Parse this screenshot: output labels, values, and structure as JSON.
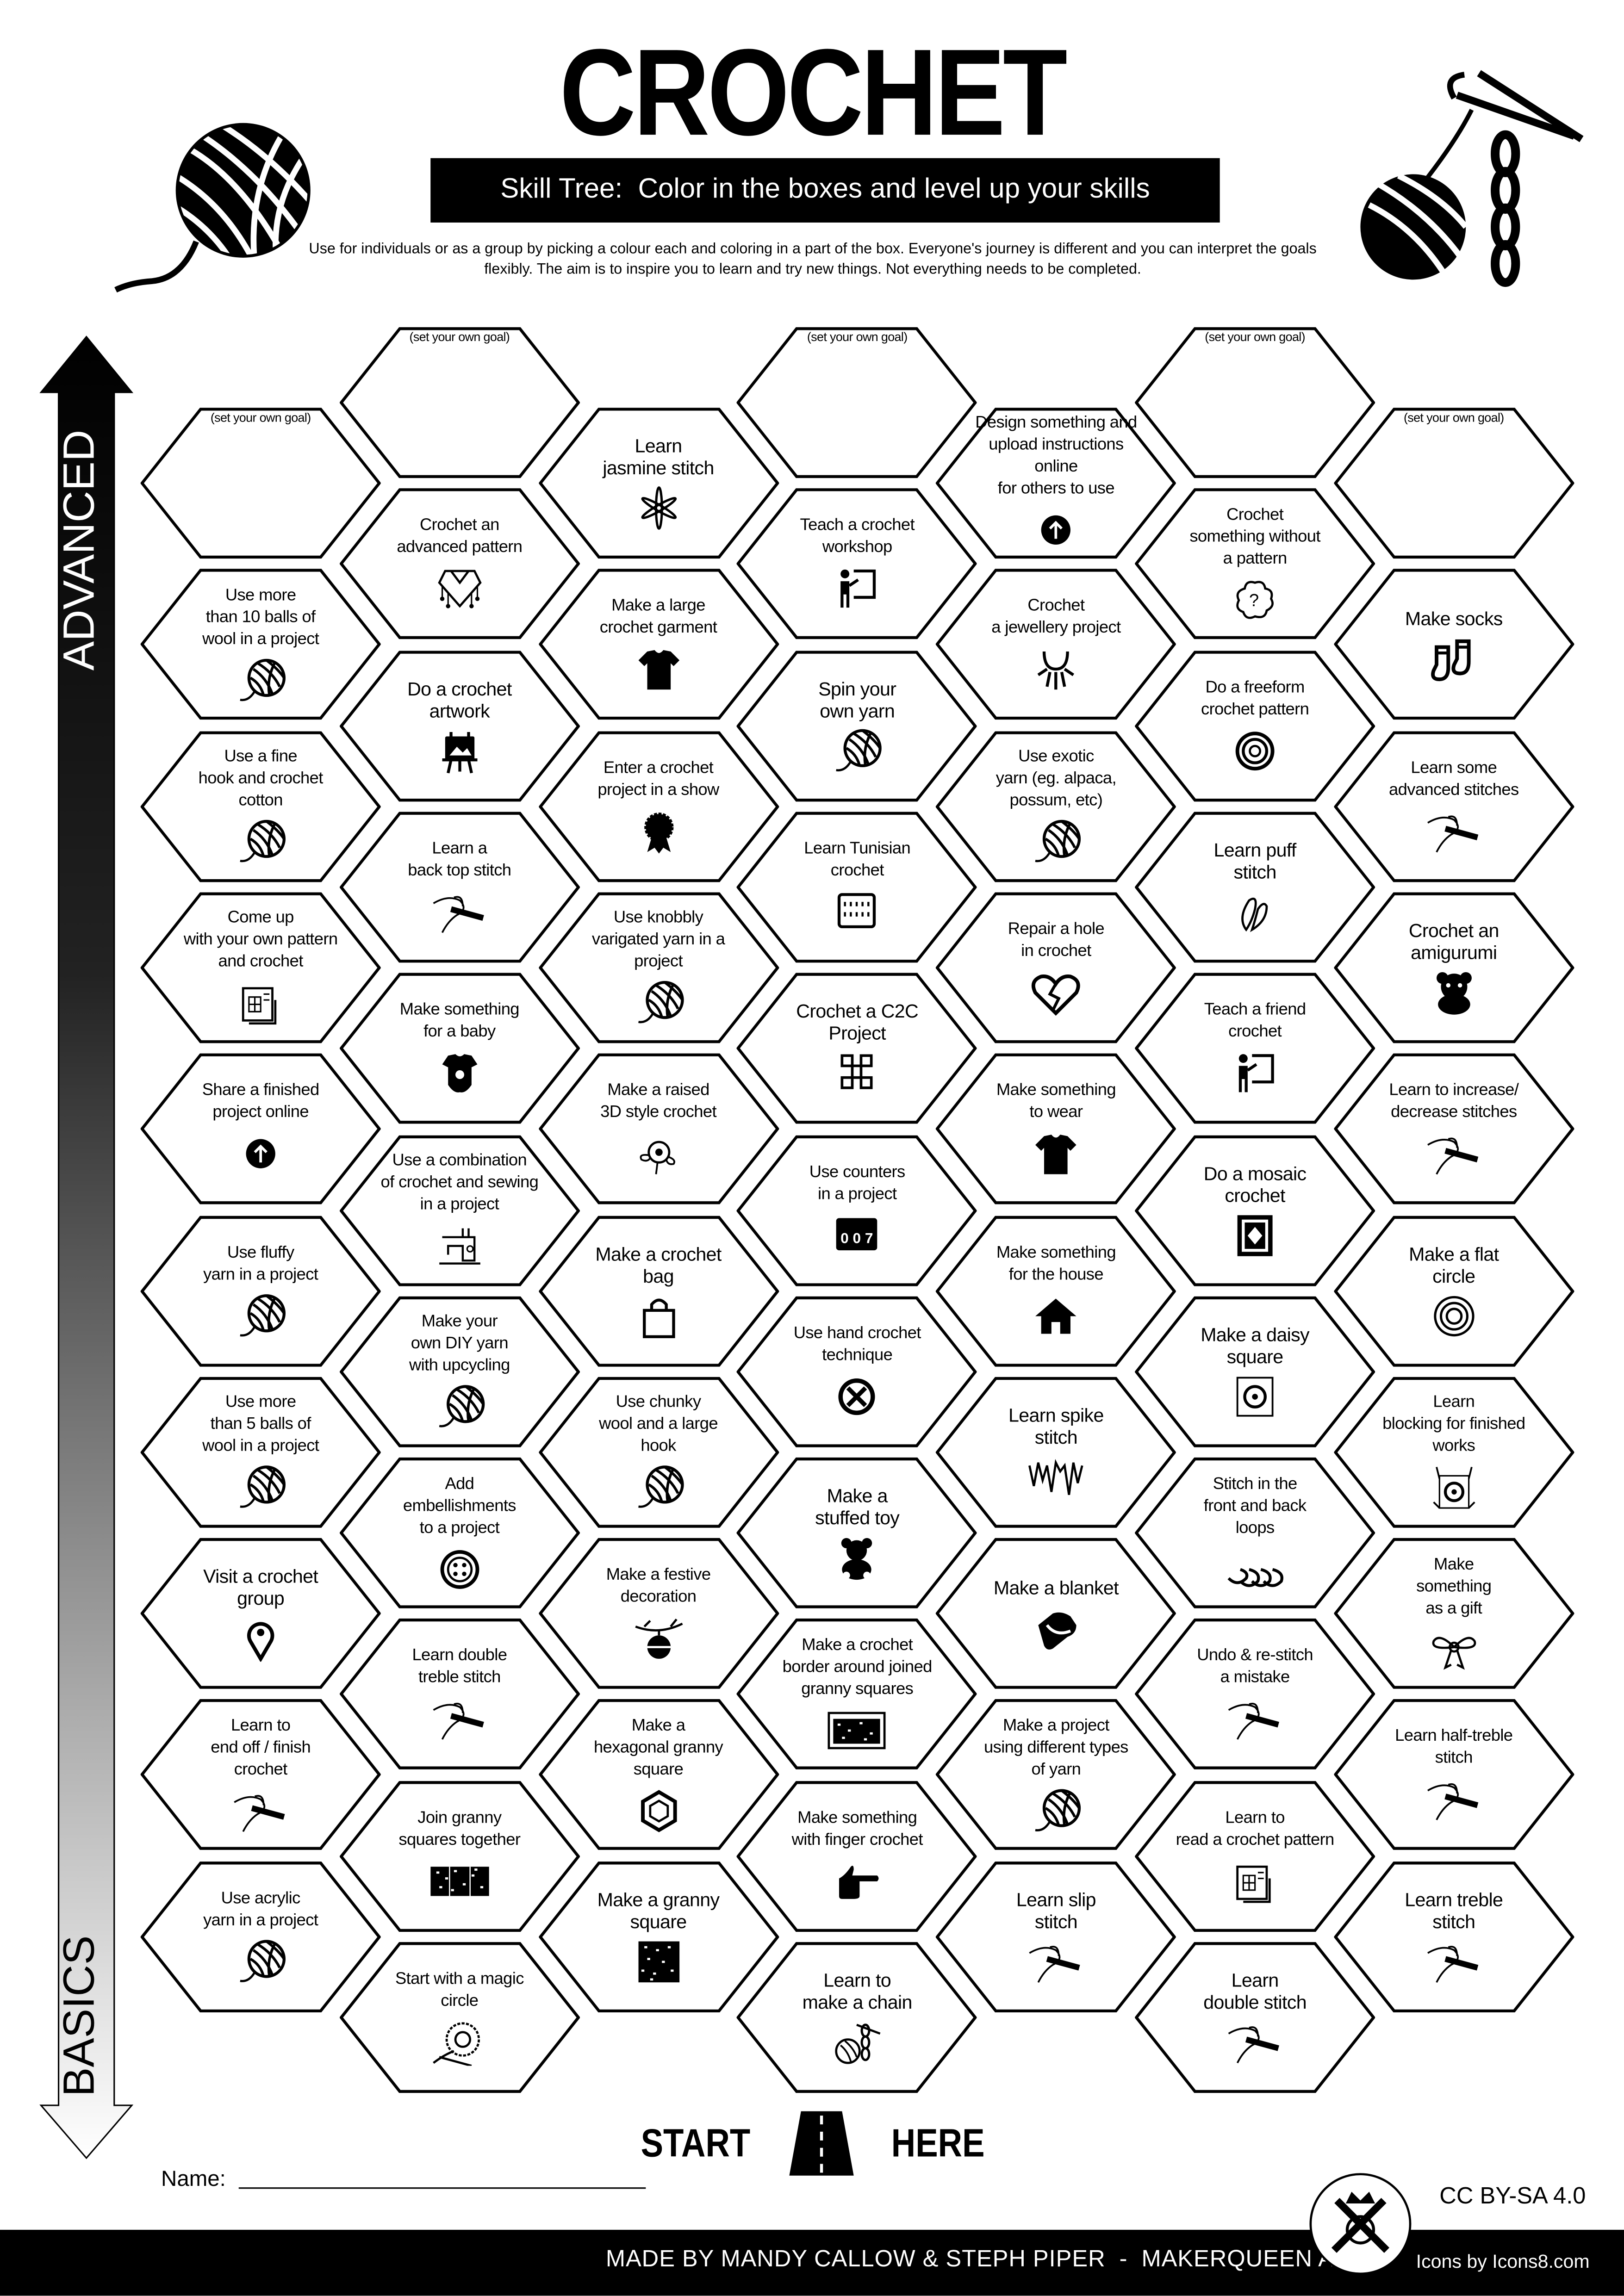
{
  "header": {
    "title": "CROCHET",
    "subtitle": "Skill Tree:  Color in the boxes and level up your skills",
    "intro": "Use for individuals or as a group by picking a colour each and coloring in a part of the box.  Everyone's journey is different and you can interpret the goals flexibly.  The aim is to inspire you to learn and try new things. Not everything needs to be completed."
  },
  "axis": {
    "top_label": "ADVANCED",
    "bottom_label": "BASICS"
  },
  "colors": {
    "ink": "#000000",
    "paper": "#ffffff"
  },
  "columns": [
    [
      {
        "text": "(set your own goal)",
        "goal": true
      },
      {
        "text": "Use more\nthan 10 balls of\nwool in a project",
        "icon": "yarn-ball-icon"
      },
      {
        "text": "Use a fine\nhook and crochet\ncotton",
        "icon": "yarn-ball-icon"
      },
      {
        "text": "Come up\nwith your own pattern\nand crochet",
        "icon": "pattern-blueprint-icon"
      },
      {
        "text": "Share a finished\nproject online",
        "icon": "upload-icon"
      },
      {
        "text": "Use fluffy\nyarn in a project",
        "icon": "yarn-ball-icon"
      },
      {
        "text": "Use more\nthan 5 balls of\nwool in a project",
        "icon": "yarn-ball-icon"
      },
      {
        "text": "Visit a crochet\ngroup",
        "icon": "location-pin-icon"
      },
      {
        "text": "Learn to\nend off / finish\ncrochet",
        "icon": "crochet-hook-icon"
      },
      {
        "text": "Use acrylic\nyarn in a project",
        "icon": "yarn-ball-icon"
      }
    ],
    [
      {
        "text": "(set your own goal)",
        "goal": true
      },
      {
        "text": "Crochet an\nadvanced pattern",
        "icon": "poncho-icon"
      },
      {
        "text": "Do a crochet\nartwork",
        "icon": "easel-icon"
      },
      {
        "text": "Learn a\nback top stitch",
        "icon": "crochet-hook-icon"
      },
      {
        "text": "Make something\nfor a baby",
        "icon": "baby-onesie-icon"
      },
      {
        "text": "Use a combination\nof crochet and sewing\nin a project",
        "icon": "sewing-machine-icon"
      },
      {
        "text": "Make your\nown DIY yarn\nwith upcycling",
        "icon": "yarn-ball-icon"
      },
      {
        "text": "Add\nembellishments\nto a project",
        "icon": "button-icon"
      },
      {
        "text": "Learn double\ntreble stitch",
        "icon": "crochet-hook-icon"
      },
      {
        "text": "Join granny\nsquares together",
        "icon": "joined-granny-squares-icon"
      },
      {
        "text": "Start with a magic\ncircle",
        "icon": "magic-circle-icon"
      }
    ],
    [
      {
        "text": "Learn\njasmine stitch",
        "icon": "jasmine-flower-icon"
      },
      {
        "text": "Make a large\ncrochet garment",
        "icon": "t-shirt-icon"
      },
      {
        "text": "Enter a crochet\nproject in a show",
        "icon": "award-rosette-icon"
      },
      {
        "text": "Use knobbly\nvarigated yarn in a project",
        "icon": "yarn-ball-icon"
      },
      {
        "text": "Make a raised\n3D style crochet",
        "icon": "flower-icon"
      },
      {
        "text": "Make a crochet\nbag",
        "icon": "shopping-bag-icon"
      },
      {
        "text": "Use chunky\nwool and a large\nhook",
        "icon": "yarn-ball-icon"
      },
      {
        "text": "Make a festive\ndecoration",
        "icon": "christmas-bauble-icon"
      },
      {
        "text": "Make a\nhexagonal granny\nsquare",
        "icon": "hexagon-icon"
      },
      {
        "text": "Make a granny\nsquare",
        "icon": "granny-square-icon"
      }
    ],
    [
      {
        "text": "(set your own goal)",
        "goal": true
      },
      {
        "text": "Teach a crochet\nworkshop",
        "icon": "teacher-board-icon"
      },
      {
        "text": "Spin your\nown yarn",
        "icon": "yarn-ball-icon"
      },
      {
        "text": "Learn Tunisian\ncrochet",
        "icon": "tunisian-stitch-icon"
      },
      {
        "text": "Crochet a C2C\nProject",
        "icon": "c2c-grid-icon"
      },
      {
        "text": "Use counters\nin a project",
        "icon": "row-counter-icon"
      },
      {
        "text": "Use hand crochet\ntechnique",
        "icon": "hand-crochet-icon"
      },
      {
        "text": "Make a\nstuffed toy",
        "icon": "teddy-bear-icon"
      },
      {
        "text": "Make a crochet\nborder around joined\ngranny squares",
        "icon": "granny-border-icon"
      },
      {
        "text": "Make something\nwith finger crochet",
        "icon": "pointing-finger-icon"
      },
      {
        "text": "Learn to\nmake a chain",
        "icon": "chain-stitch-icon"
      }
    ],
    [
      {
        "text": "Design something and\nupload instructions online\nfor others to use",
        "icon": "upload-icon"
      },
      {
        "text": "Crochet\na jewellery project",
        "icon": "jewellery-icon"
      },
      {
        "text": "Use exotic\nyarn (eg. alpaca,\npossum, etc)",
        "icon": "yarn-ball-icon"
      },
      {
        "text": "Repair a hole\nin crochet",
        "icon": "broken-heart-icon"
      },
      {
        "text": "Make something\nto wear",
        "icon": "t-shirt-icon"
      },
      {
        "text": "Make something\nfor the house",
        "icon": "house-icon"
      },
      {
        "text": "Learn spike\nstitch",
        "icon": "spike-stitch-icon"
      },
      {
        "text": "Make a blanket",
        "icon": "blanket-icon"
      },
      {
        "text": "Make a project\nusing different types\nof yarn",
        "icon": "yarn-ball-icon"
      },
      {
        "text": "Learn slip\nstitch",
        "icon": "crochet-hook-icon"
      }
    ],
    [
      {
        "text": "(set your own goal)",
        "goal": true
      },
      {
        "text": "Crochet\nsomething without\na pattern",
        "icon": "question-flower-icon"
      },
      {
        "text": "Do a freeform\ncrochet pattern",
        "icon": "freeform-rose-icon"
      },
      {
        "text": "Learn puff\nstitch",
        "icon": "puff-stitch-icon"
      },
      {
        "text": "Teach a friend\ncrochet",
        "icon": "teacher-board-icon"
      },
      {
        "text": "Do a mosaic\ncrochet",
        "icon": "mosaic-icon"
      },
      {
        "text": "Make a daisy\nsquare",
        "icon": "daisy-square-icon"
      },
      {
        "text": "Stitch in the\nfront and back\nloops",
        "icon": "loops-icon"
      },
      {
        "text": "Undo & re-stitch\na mistake",
        "icon": "crochet-hook-icon"
      },
      {
        "text": "Learn to\nread a crochet pattern",
        "icon": "pattern-blueprint-icon"
      },
      {
        "text": "Learn\ndouble stitch",
        "icon": "crochet-hook-icon"
      }
    ],
    [
      {
        "text": "(set your own goal)",
        "goal": true
      },
      {
        "text": "Make socks",
        "icon": "socks-icon"
      },
      {
        "text": "Learn some\nadvanced stitches",
        "icon": "crochet-hook-icon"
      },
      {
        "text": "Crochet an\namigurumi",
        "icon": "amigurumi-icon"
      },
      {
        "text": "Learn to increase/\ndecrease stitches",
        "icon": "crochet-hook-icon"
      },
      {
        "text": "Make a flat\ncircle",
        "icon": "concentric-circle-icon"
      },
      {
        "text": "Learn\nblocking for finished\nworks",
        "icon": "blocking-icon"
      },
      {
        "text": "Make\nsomething\nas a gift",
        "icon": "gift-bow-icon"
      },
      {
        "text": "Learn half-treble\nstitch",
        "icon": "crochet-hook-icon"
      },
      {
        "text": "Learn treble\nstitch",
        "icon": "crochet-hook-icon"
      }
    ]
  ],
  "start": {
    "left": "START",
    "right": "HERE",
    "icon": "road-icon"
  },
  "name_label": "Name:",
  "license": "CC BY-SA 4.0",
  "footer": {
    "credit": "MADE BY MANDY CALLOW & STEPH PIPER  -  MAKERQUEEN AU",
    "icons_credit": "Icons by Icons8.com",
    "logo": "MakerQueen tools logo"
  },
  "decor": {
    "left": "yarn-ball-icon",
    "right": "crochet-hook-chain-icon"
  }
}
